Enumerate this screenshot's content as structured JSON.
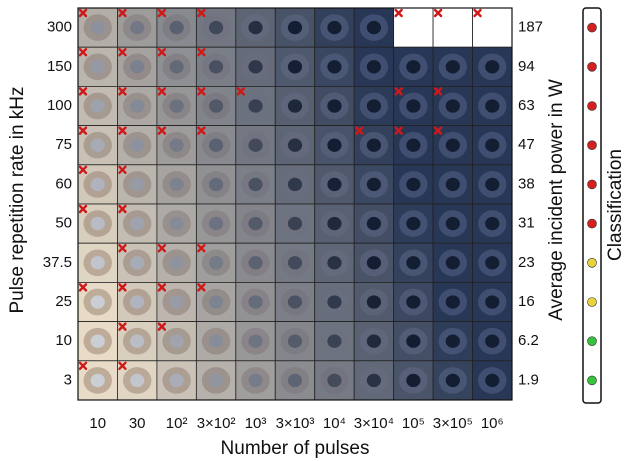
{
  "figure": {
    "y_axis_title": "Pulse repetition rate in kHz",
    "y2_axis_title": "Average incident power in W",
    "x_axis_title": "Number of pulses",
    "legend_title": "Classification",
    "rows": [
      "300",
      "150",
      "100",
      "75",
      "60",
      "50",
      "37.5",
      "25",
      "10",
      "3"
    ],
    "power": [
      "187",
      "94",
      "63",
      "47",
      "38",
      "31",
      "23",
      "16",
      "6.2",
      "1.9"
    ],
    "columns": [
      "10",
      "30",
      "10²",
      "3×10²",
      "10³",
      "3×10³",
      "10⁴",
      "3×10⁴",
      "10⁵",
      "3×10⁵",
      "10⁶"
    ],
    "classification": [
      "#d42020",
      "#d42020",
      "#d42020",
      "#d42020",
      "#d42020",
      "#d42020",
      "#e8d43a",
      "#e8d43a",
      "#36c43a",
      "#36c43a"
    ],
    "rejected": [
      [
        true,
        true,
        true,
        true,
        false,
        false,
        false,
        false,
        true,
        true,
        true
      ],
      [
        true,
        true,
        true,
        true,
        false,
        false,
        false,
        false,
        false,
        false,
        false
      ],
      [
        true,
        true,
        true,
        true,
        true,
        false,
        false,
        false,
        true,
        true,
        false
      ],
      [
        true,
        true,
        true,
        true,
        false,
        false,
        false,
        true,
        true,
        true,
        false
      ],
      [
        true,
        true,
        false,
        false,
        false,
        false,
        false,
        false,
        false,
        false,
        false
      ],
      [
        true,
        true,
        false,
        false,
        false,
        false,
        false,
        false,
        false,
        false,
        false
      ],
      [
        false,
        true,
        true,
        true,
        false,
        false,
        false,
        false,
        false,
        false,
        false
      ],
      [
        true,
        true,
        true,
        true,
        false,
        false,
        false,
        false,
        false,
        false,
        false
      ],
      [
        false,
        true,
        true,
        false,
        false,
        false,
        false,
        false,
        false,
        false,
        false
      ],
      [
        true,
        true,
        false,
        false,
        false,
        false,
        false,
        false,
        false,
        false,
        false
      ]
    ],
    "blank": [
      [
        false,
        false,
        false,
        false,
        false,
        false,
        false,
        false,
        true,
        true,
        true
      ]
    ]
  }
}
